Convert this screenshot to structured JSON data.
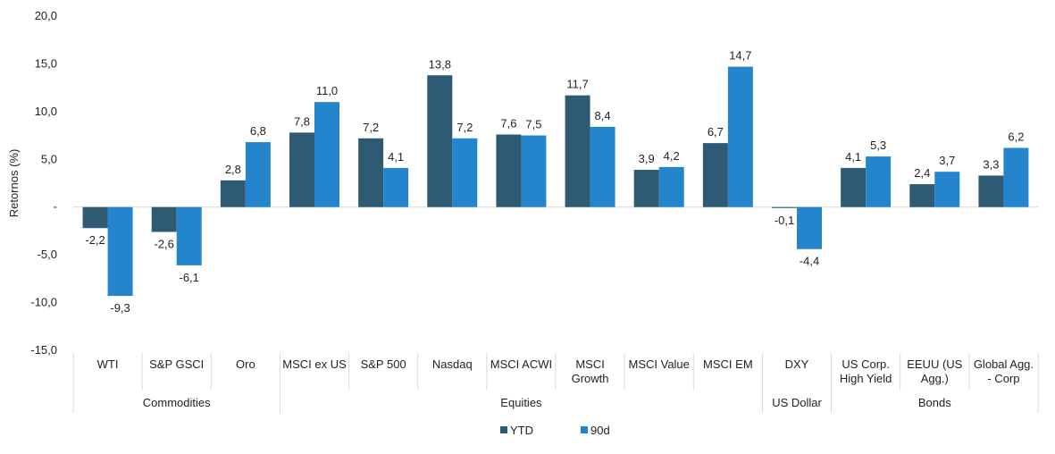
{
  "chart_data": {
    "type": "bar",
    "ylabel": "Retornos (%)",
    "ylim": [
      -15,
      20
    ],
    "yticks": [
      {
        "value": 20,
        "label": "20,0"
      },
      {
        "value": 15,
        "label": "15,0"
      },
      {
        "value": 10,
        "label": "10,0"
      },
      {
        "value": 5,
        "label": "5,0"
      },
      {
        "value": 0,
        "label": "-"
      },
      {
        "value": -5,
        "label": "-5,0"
      },
      {
        "value": -10,
        "label": "-10,0"
      },
      {
        "value": -15,
        "label": "-15,0"
      }
    ],
    "categories": [
      [
        "WTI"
      ],
      [
        "S&P GSCI"
      ],
      [
        "Oro"
      ],
      [
        "MSCI ex US"
      ],
      [
        "S&P 500"
      ],
      [
        "Nasdaq"
      ],
      [
        "MSCI ACWI"
      ],
      [
        "MSCI",
        "Growth"
      ],
      [
        "MSCI Value"
      ],
      [
        "MSCI EM"
      ],
      [
        "DXY"
      ],
      [
        "US Corp.",
        "High Yield"
      ],
      [
        "EEUU (US",
        "Agg.)"
      ],
      [
        "Global Agg.",
        "- Corp"
      ]
    ],
    "groups": [
      {
        "label": "Commodities",
        "start": 0,
        "end": 2
      },
      {
        "label": "Equities",
        "start": 3,
        "end": 9
      },
      {
        "label": "US Dollar",
        "start": 10,
        "end": 10
      },
      {
        "label": "Bonds",
        "start": 11,
        "end": 13
      }
    ],
    "series": [
      {
        "name": "YTD",
        "color": "#2e5a74",
        "values": [
          -2.2,
          -2.6,
          2.8,
          7.8,
          7.2,
          13.8,
          7.6,
          11.7,
          3.9,
          6.7,
          -0.1,
          4.1,
          2.4,
          3.3
        ],
        "labels": [
          "-2,2",
          "-2,6",
          "2,8",
          "7,8",
          "7,2",
          "13,8",
          "7,6",
          "11,7",
          "3,9",
          "6,7",
          "-0,1",
          "4,1",
          "2,4",
          "3,3"
        ]
      },
      {
        "name": "90d",
        "color": "#2585cc",
        "values": [
          -9.3,
          -6.1,
          6.8,
          11.0,
          4.1,
          7.2,
          7.5,
          8.4,
          4.2,
          14.7,
          -4.4,
          5.3,
          3.7,
          6.2
        ],
        "labels": [
          "-9,3",
          "-6,1",
          "6,8",
          "11,0",
          "4,1",
          "7,2",
          "7,5",
          "8,4",
          "4,2",
          "14,7",
          "-4,4",
          "5,3",
          "3,7",
          "6,2"
        ]
      }
    ],
    "legend": "bottom",
    "grid": false
  }
}
